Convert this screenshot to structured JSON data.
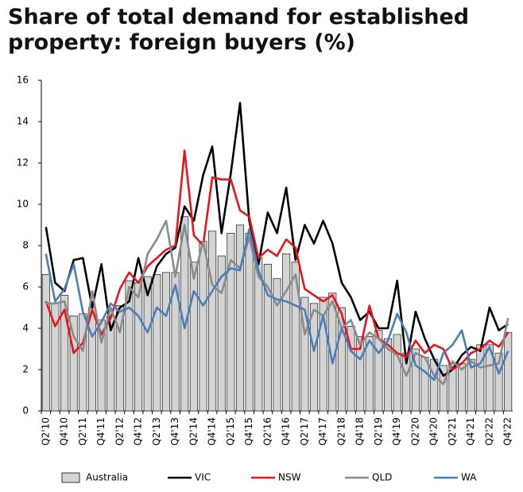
{
  "chart_data": {
    "type": "combo",
    "title": "Share of total demand for established property: foreign buyers (%)",
    "categories": [
      "Q2'10",
      null,
      "Q4'10",
      null,
      "Q2'11",
      null,
      "Q4'11",
      null,
      "Q2'12",
      null,
      "Q4'12",
      null,
      "Q2'13",
      null,
      "Q4'13",
      null,
      "Q2'14",
      null,
      "Q4'14",
      null,
      "Q2'15",
      null,
      "Q4'15",
      null,
      "Q2'16",
      null,
      "Q4'16",
      null,
      "Q2'17",
      null,
      "Q4'17",
      null,
      "Q2'18",
      null,
      "Q4'18",
      null,
      "Q2'19",
      null,
      "Q4'19",
      null,
      "Q2'20",
      null,
      "Q4'20",
      null,
      "Q2'21",
      null,
      "Q4'21",
      null,
      "Q2'22",
      null,
      "Q4'22"
    ],
    "ylim": [
      0,
      16
    ],
    "yticks": [
      0,
      2,
      4,
      6,
      8,
      10,
      12,
      14,
      16
    ],
    "series": [
      {
        "name": "Australia",
        "type": "bar",
        "color": "#d4d4d4",
        "values": [
          6.6,
          5.2,
          5.6,
          4.6,
          4.7,
          5.0,
          4.4,
          4.6,
          5.1,
          6.3,
          6.2,
          6.5,
          6.6,
          6.7,
          6.7,
          9.4,
          7.2,
          8.2,
          8.7,
          7.5,
          8.6,
          9.0,
          8.6,
          7.4,
          7.1,
          6.4,
          7.6,
          7.2,
          5.5,
          5.2,
          5.5,
          5.7,
          5.0,
          4.1,
          3.6,
          3.6,
          3.9,
          3.5,
          3.7,
          2.8,
          3.0,
          2.6,
          2.5,
          2.2,
          2.3,
          2.3,
          2.5,
          3.2,
          3.2,
          2.8,
          3.8
        ]
      },
      {
        "name": "VIC",
        "type": "line",
        "color": "#000000",
        "values": [
          8.9,
          6.2,
          5.8,
          7.3,
          7.4,
          5.0,
          7.1,
          3.9,
          5.0,
          5.3,
          7.4,
          5.6,
          7.0,
          7.6,
          7.9,
          9.9,
          9.2,
          11.4,
          12.8,
          8.6,
          11.5,
          14.9,
          9.2,
          7.1,
          9.6,
          8.6,
          10.8,
          7.3,
          9.0,
          8.1,
          9.2,
          8.1,
          6.2,
          5.5,
          4.4,
          4.8,
          4.0,
          4.0,
          6.3,
          2.3,
          4.8,
          3.5,
          2.5,
          1.7,
          2.0,
          2.7,
          3.1,
          2.9,
          5.0,
          3.9,
          4.2
        ]
      },
      {
        "name": "NSW",
        "type": "line",
        "color": "#e8141b",
        "values": [
          5.3,
          4.1,
          4.9,
          2.8,
          3.3,
          4.9,
          3.7,
          4.5,
          5.9,
          6.7,
          6.2,
          7.0,
          7.4,
          7.8,
          8.0,
          12.6,
          8.5,
          8.0,
          11.3,
          11.2,
          11.2,
          9.7,
          9.4,
          7.4,
          7.8,
          7.5,
          8.3,
          7.9,
          5.9,
          5.6,
          5.3,
          5.6,
          4.7,
          3.0,
          3.0,
          5.1,
          3.5,
          3.2,
          2.8,
          2.6,
          3.4,
          2.8,
          3.2,
          3.0,
          2.0,
          2.3,
          2.8,
          3.0,
          3.4,
          3.1,
          3.8
        ]
      },
      {
        "name": "QLD",
        "type": "line",
        "color": "#8a8a8a",
        "values": [
          5.2,
          5.2,
          5.3,
          3.6,
          2.9,
          5.8,
          3.3,
          5.0,
          3.8,
          6.0,
          5.5,
          7.6,
          8.3,
          9.2,
          6.5,
          9.0,
          6.4,
          8.2,
          6.1,
          5.7,
          7.3,
          6.9,
          8.4,
          6.5,
          6.0,
          5.1,
          5.8,
          6.6,
          3.7,
          4.9,
          4.6,
          5.3,
          4.0,
          4.4,
          3.2,
          3.8,
          3.5,
          3.0,
          2.7,
          1.7,
          2.8,
          2.6,
          1.7,
          1.3,
          2.4,
          2.0,
          2.4,
          2.1,
          2.2,
          2.3,
          4.5
        ]
      },
      {
        "name": "WA",
        "type": "line",
        "color": "#4a7ebb",
        "values": [
          7.6,
          5.3,
          5.9,
          7.1,
          4.8,
          3.6,
          4.3,
          5.2,
          4.8,
          5.0,
          4.6,
          3.8,
          5.0,
          4.6,
          6.1,
          4.0,
          5.8,
          5.1,
          5.8,
          6.5,
          6.9,
          6.8,
          8.8,
          6.8,
          5.6,
          5.4,
          5.3,
          5.1,
          4.9,
          2.9,
          4.6,
          2.3,
          4.0,
          2.9,
          2.5,
          3.4,
          2.8,
          3.4,
          4.7,
          3.8,
          2.2,
          1.9,
          1.5,
          2.8,
          3.2,
          3.9,
          2.1,
          2.3,
          3.1,
          1.8,
          2.9
        ]
      }
    ]
  }
}
